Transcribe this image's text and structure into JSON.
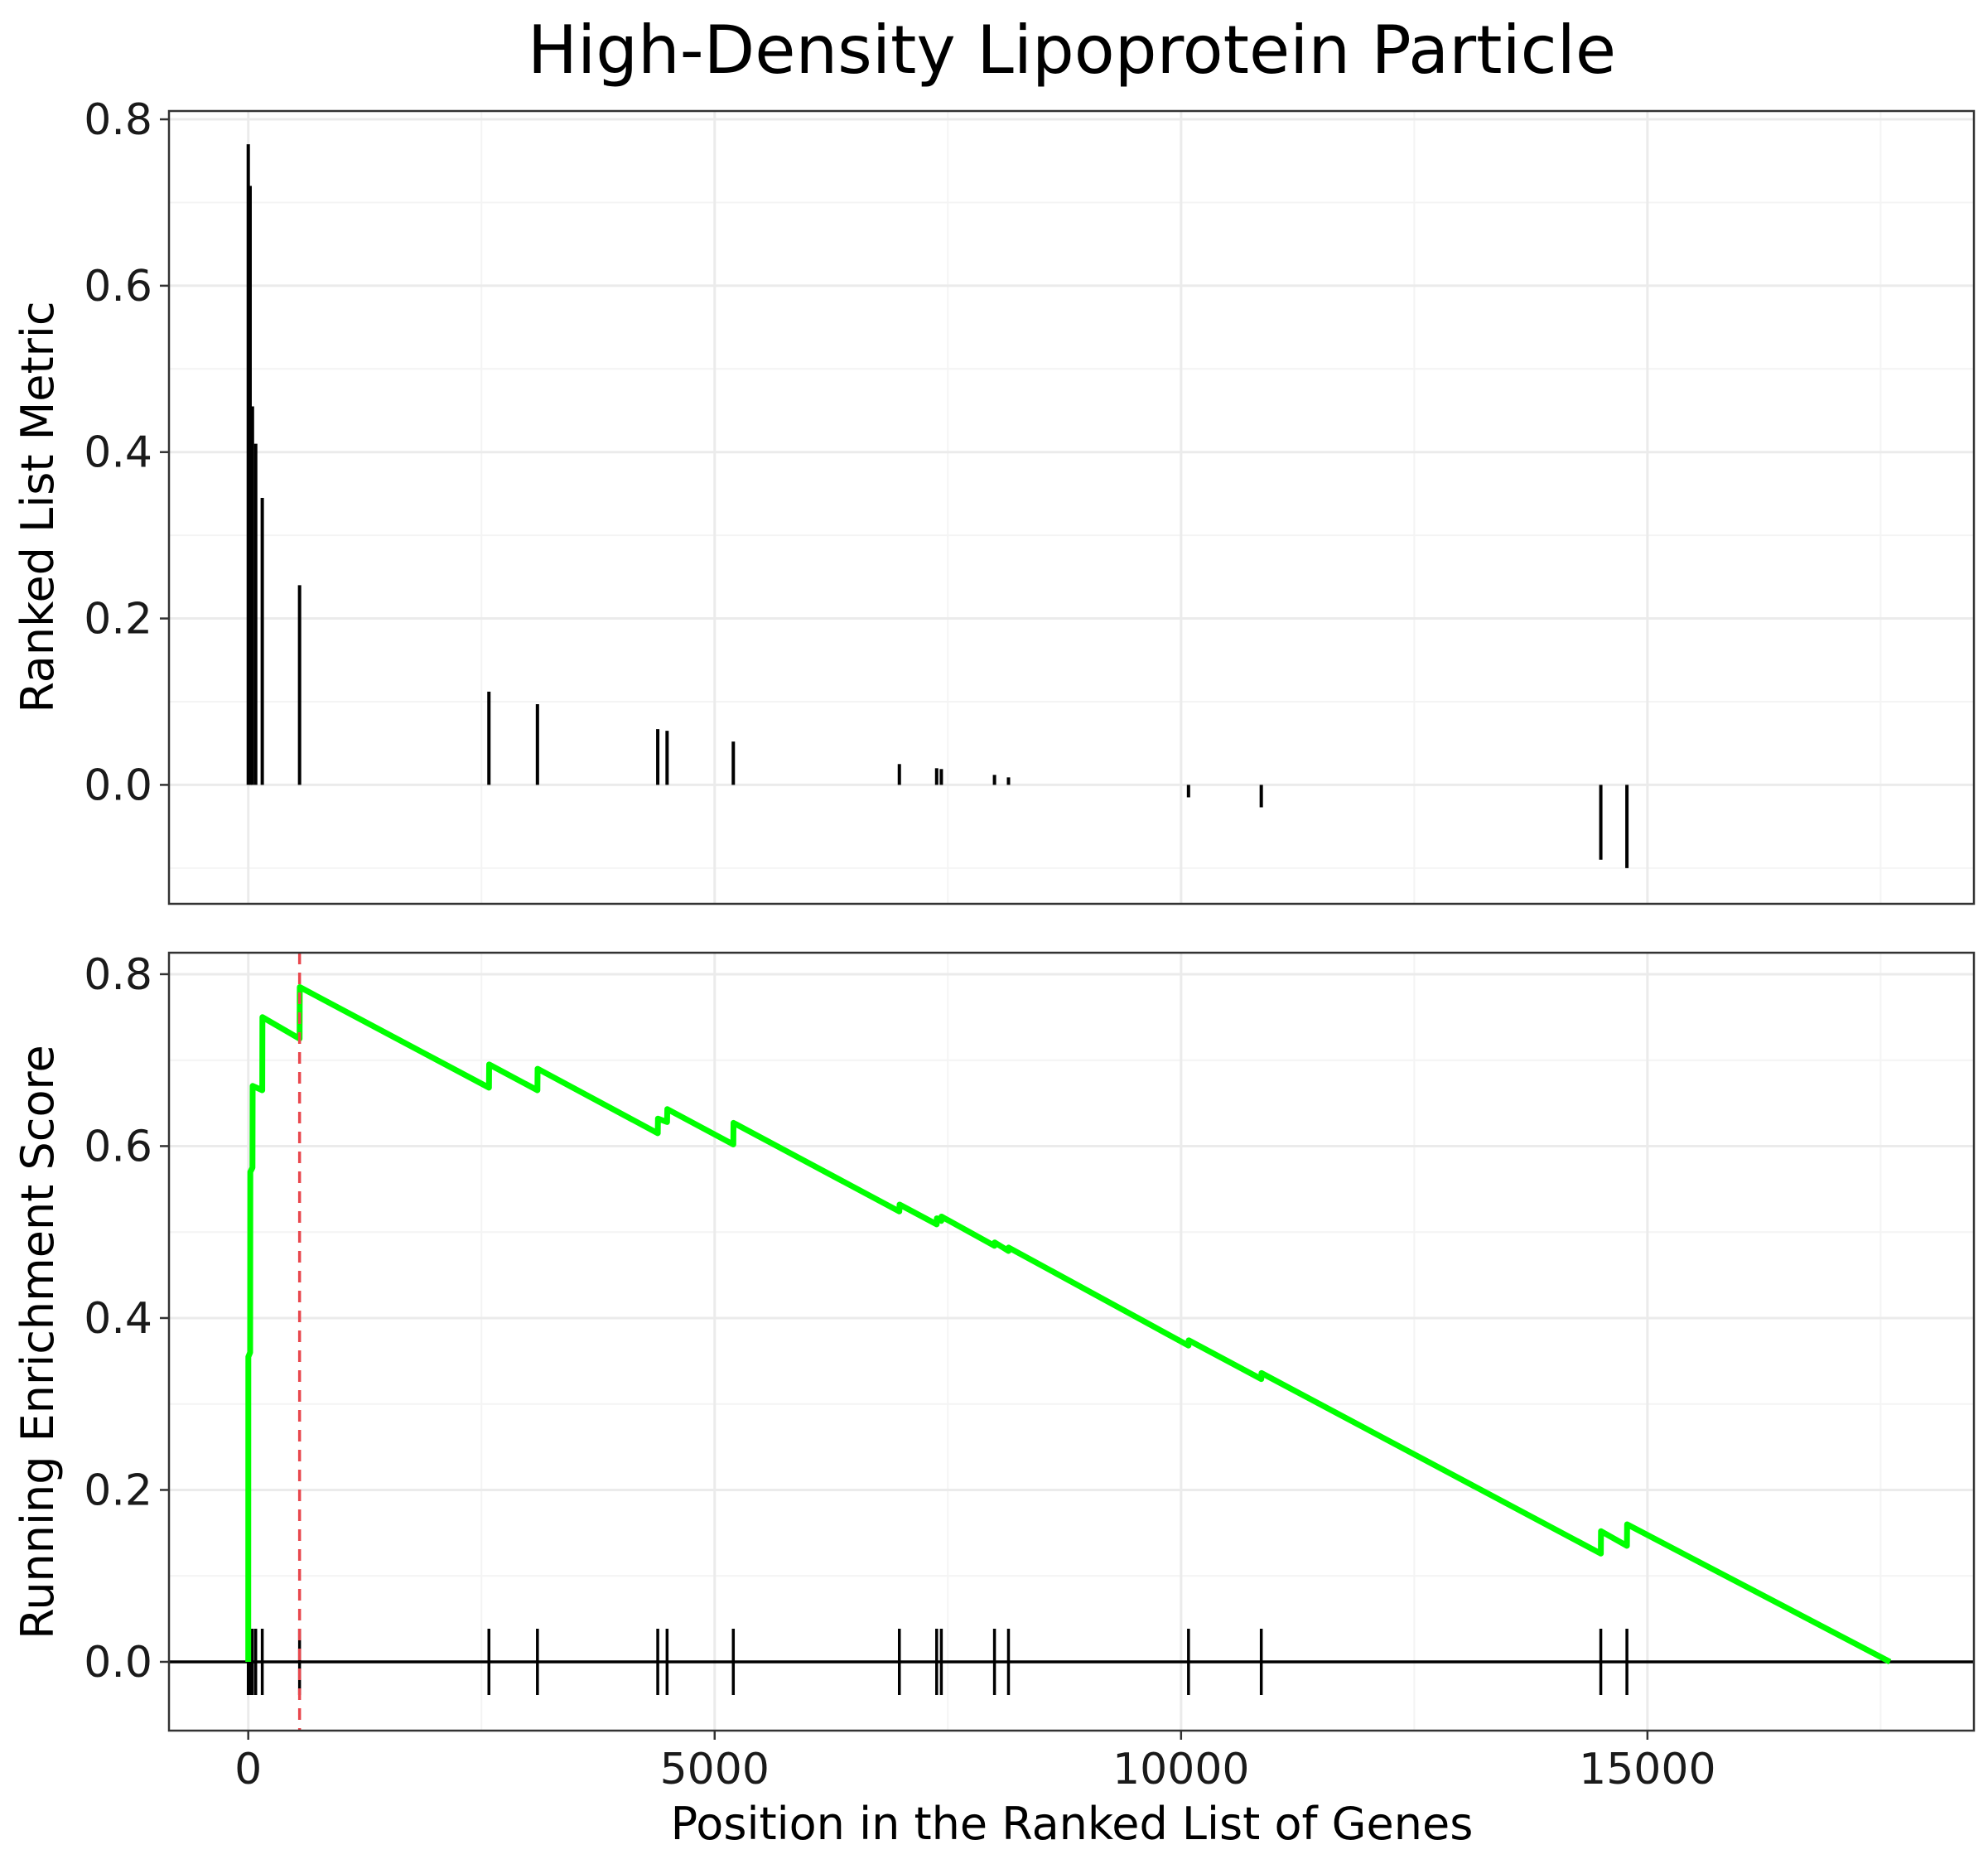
{
  "chart_data": {
    "type": "line",
    "title": "High-Density Lipoprotein Particle",
    "xlabel": "Position in the Ranked List of Genes",
    "xlim": [
      -850,
      18500
    ],
    "x_ticks": [
      0,
      5000,
      10000,
      15000
    ],
    "grid": true,
    "top_panel": {
      "type": "bar",
      "ylabel": "Ranked List Metric",
      "ylim": [
        -0.143,
        0.81
      ],
      "y_ticks": [
        0.0,
        0.2,
        0.4,
        0.6,
        0.8
      ],
      "bars": [
        {
          "x": 0,
          "y": 0.77
        },
        {
          "x": 20,
          "y": 0.72
        },
        {
          "x": 45,
          "y": 0.455
        },
        {
          "x": 80,
          "y": 0.41
        },
        {
          "x": 150,
          "y": 0.345
        },
        {
          "x": 550,
          "y": 0.24
        },
        {
          "x": 2580,
          "y": 0.112
        },
        {
          "x": 3100,
          "y": 0.097
        },
        {
          "x": 4390,
          "y": 0.067
        },
        {
          "x": 4490,
          "y": 0.065
        },
        {
          "x": 5200,
          "y": 0.052
        },
        {
          "x": 6980,
          "y": 0.025
        },
        {
          "x": 7380,
          "y": 0.02
        },
        {
          "x": 7430,
          "y": 0.019
        },
        {
          "x": 8000,
          "y": 0.012
        },
        {
          "x": 8150,
          "y": 0.009
        },
        {
          "x": 10080,
          "y": -0.015
        },
        {
          "x": 10860,
          "y": -0.027
        },
        {
          "x": 14500,
          "y": -0.09
        },
        {
          "x": 14780,
          "y": -0.1
        }
      ]
    },
    "bottom_panel": {
      "type": "line",
      "ylabel": "Running Enrichment Score",
      "ylim": [
        -0.08,
        0.825
      ],
      "y_ticks": [
        0.0,
        0.2,
        0.4,
        0.6,
        0.8
      ],
      "series": [
        {
          "color": "#00ff00",
          "points": [
            [
              0,
              0.0
            ],
            [
              1,
              0.355
            ],
            [
              20,
              0.36
            ],
            [
              22,
              0.57
            ],
            [
              45,
              0.575
            ],
            [
              47,
              0.67
            ],
            [
              150,
              0.665
            ],
            [
              152,
              0.75
            ],
            [
              550,
              0.725
            ],
            [
              552,
              0.785
            ],
            [
              2580,
              0.668
            ],
            [
              2582,
              0.695
            ],
            [
              3100,
              0.665
            ],
            [
              3102,
              0.69
            ],
            [
              4390,
              0.615
            ],
            [
              4392,
              0.632
            ],
            [
              4490,
              0.628
            ],
            [
              4492,
              0.643
            ],
            [
              5200,
              0.602
            ],
            [
              5202,
              0.627
            ],
            [
              6980,
              0.524
            ],
            [
              6982,
              0.532
            ],
            [
              7380,
              0.509
            ],
            [
              7382,
              0.516
            ],
            [
              7430,
              0.513
            ],
            [
              7432,
              0.518
            ],
            [
              8000,
              0.484
            ],
            [
              8002,
              0.488
            ],
            [
              8150,
              0.478
            ],
            [
              8152,
              0.482
            ],
            [
              10080,
              0.368
            ],
            [
              10082,
              0.374
            ],
            [
              10860,
              0.329
            ],
            [
              10862,
              0.336
            ],
            [
              14500,
              0.126
            ],
            [
              14502,
              0.152
            ],
            [
              14780,
              0.135
            ],
            [
              14782,
              0.16
            ],
            [
              17600,
              0.0
            ]
          ]
        }
      ],
      "peak_x": 550,
      "hits": [
        0,
        20,
        45,
        80,
        150,
        550,
        2580,
        3100,
        4390,
        4490,
        5200,
        6980,
        7380,
        7430,
        8000,
        8150,
        10080,
        10860,
        14500,
        14780
      ]
    }
  }
}
